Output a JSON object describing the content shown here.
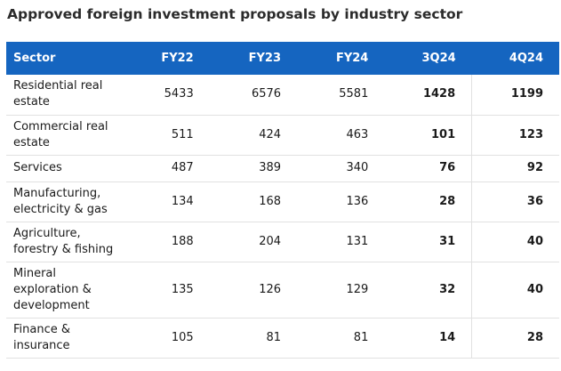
{
  "chart_data": {
    "type": "table",
    "title": "Approved foreign investment proposals by industry sector",
    "columns": [
      "Sector",
      "FY22",
      "FY23",
      "FY24",
      "3Q24",
      "4Q24"
    ],
    "rows": [
      {
        "sector": "Residential real estate",
        "values": [
          "5433",
          "6576",
          "5581",
          "1428",
          "1199"
        ]
      },
      {
        "sector": "Commercial real estate",
        "values": [
          "511",
          "424",
          "463",
          "101",
          "123"
        ]
      },
      {
        "sector": "Services",
        "values": [
          "487",
          "389",
          "340",
          "76",
          "92"
        ]
      },
      {
        "sector": "Manufacturing, electricity & gas",
        "values": [
          "134",
          "168",
          "136",
          "28",
          "36"
        ]
      },
      {
        "sector": "Agriculture, forestry & fishing",
        "values": [
          "188",
          "204",
          "131",
          "31",
          "40"
        ]
      },
      {
        "sector": "Mineral exploration & development",
        "values": [
          "135",
          "126",
          "129",
          "32",
          "40"
        ]
      },
      {
        "sector": "Finance & insurance",
        "values": [
          "105",
          "81",
          "81",
          "14",
          "28"
        ]
      }
    ]
  },
  "colors": {
    "header_bg": "#1565c0",
    "header_text": "#ffffff",
    "row_divider": "#e1e1e1"
  }
}
